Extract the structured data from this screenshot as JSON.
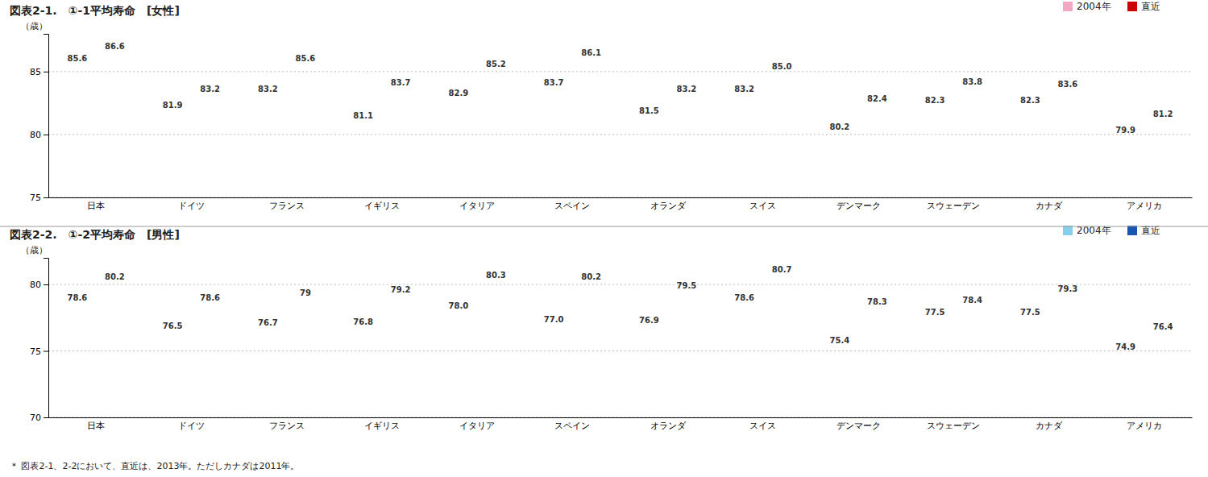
{
  "chart_data": [
    {
      "type": "bar",
      "title": "図表2-1.　①-1平均寿命　[女性]",
      "ylabel": "（歳）",
      "categories": [
        "日本",
        "ドイツ",
        "フランス",
        "イギリス",
        "イタリア",
        "スペイン",
        "オランダ",
        "スイス",
        "デンマーク",
        "スウェーデン",
        "カナダ",
        "アメリカ"
      ],
      "series": [
        {
          "name": "2004年",
          "color": "#F4A7C3",
          "values": [
            85.6,
            81.9,
            83.2,
            81.1,
            82.9,
            83.7,
            81.5,
            83.2,
            80.2,
            82.3,
            82.3,
            79.9
          ]
        },
        {
          "name": "直近",
          "color": "#CC0000",
          "values": [
            86.6,
            83.2,
            85.6,
            83.7,
            85.2,
            86.1,
            83.2,
            85.0,
            82.4,
            83.8,
            83.6,
            81.2
          ],
          "value_labels": [
            "86.6",
            "83.2",
            "85.6",
            "83.7",
            "85.2",
            "86.1",
            "83.2",
            "85.0",
            "82.4",
            "83.8",
            "83.6",
            "81.2"
          ]
        }
      ],
      "ylim": [
        75,
        88
      ],
      "yticks": [
        75,
        80,
        85
      ],
      "grid": true,
      "data_labels": true,
      "legend": "upper right"
    },
    {
      "type": "bar",
      "title": "図表2-2.　①-2平均寿命　[男性]",
      "ylabel": "（歳）",
      "categories": [
        "日本",
        "ドイツ",
        "フランス",
        "イギリス",
        "イタリア",
        "スペイン",
        "オランダ",
        "スイス",
        "デンマーク",
        "スウェーデン",
        "カナダ",
        "アメリカ"
      ],
      "series": [
        {
          "name": "2004年",
          "color": "#87CEEB",
          "values": [
            78.6,
            76.5,
            76.7,
            76.8,
            78.0,
            77.0,
            76.9,
            78.6,
            75.4,
            77.5,
            77.5,
            74.9
          ],
          "value_labels": [
            "78.6",
            "76.5",
            "76.7",
            "76.8",
            "78.0",
            "77.0",
            "76.9",
            "78.6",
            "75.4",
            "77.5",
            "77.5",
            "74.9"
          ]
        },
        {
          "name": "直近",
          "color": "#1A56B0",
          "values": [
            80.2,
            78.6,
            79.0,
            79.2,
            80.3,
            80.2,
            79.5,
            80.7,
            78.3,
            78.4,
            79.3,
            76.4
          ]
        }
      ],
      "ylim": [
        70,
        82
      ],
      "yticks": [
        70,
        75,
        80
      ],
      "grid": true,
      "data_labels": true,
      "legend": "upper right",
      "annotations": [
        "＊ 図表2-1、2-2において、直近は、2013年。ただしカナダは2011年。"
      ]
    }
  ]
}
